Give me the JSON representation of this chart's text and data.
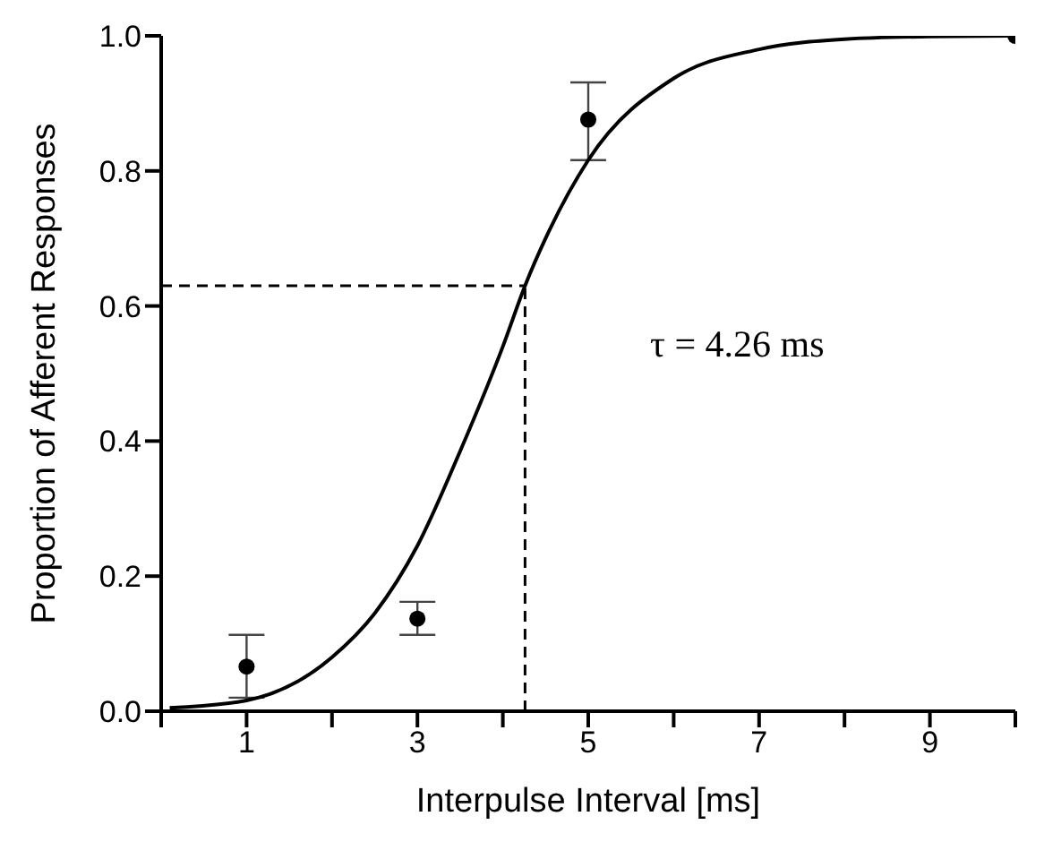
{
  "chart_data": {
    "type": "scatter",
    "xlabel": "Interpulse Interval [ms]",
    "ylabel": "Proportion of Afferent Responses",
    "annotations": [
      "τ = 4.26 ms"
    ],
    "series": [
      {
        "color": "#000000",
        "marker": "circle",
        "x": [
          1,
          3,
          5,
          10
        ],
        "values": [
          0.066,
          0.137,
          0.876,
          1.0
        ],
        "errors": [
          [
            0.02,
            0.113
          ],
          [
            0.113,
            0.162
          ],
          [
            0.816,
            0.931
          ],
          null
        ]
      },
      {
        "type": "line",
        "color": "#000000",
        "marker": "none",
        "line_style": "solid",
        "x": [
          0.1,
          1,
          2,
          2.5,
          3,
          3.5,
          4,
          4.26,
          4.5,
          5,
          6,
          7,
          8,
          9,
          10
        ],
        "values": [
          0.005,
          0.016,
          0.08,
          0.145,
          0.245,
          0.385,
          0.54,
          0.63,
          0.7,
          0.816,
          0.937,
          0.98,
          0.995,
          0.999,
          1.0
        ]
      }
    ],
    "ref_lines": [
      {
        "axis": "y",
        "value": 0.63,
        "line_style": "dashed",
        "color": "#000000"
      },
      {
        "axis": "x",
        "value": 4.26,
        "line_style": "dashed",
        "color": "#000000"
      }
    ],
    "xlim": [
      0,
      10
    ],
    "xticks": [
      {
        "value": 0,
        "label": null
      },
      1,
      {
        "value": 2,
        "label": null
      },
      3,
      {
        "value": 4,
        "label": null
      },
      5,
      {
        "value": 6,
        "label": null
      },
      7,
      {
        "value": 8,
        "label": null
      },
      9,
      {
        "value": 10,
        "label": null
      }
    ],
    "ylim": [
      0,
      1
    ],
    "yticks": [
      {
        "value": 0,
        "label": "0.0"
      },
      {
        "value": 0.2,
        "label": "0.2"
      },
      {
        "value": 0.4,
        "label": "0.4"
      },
      {
        "value": 0.6,
        "label": "0.6"
      },
      {
        "value": 0.8,
        "label": "0.8"
      },
      {
        "value": 1,
        "label": "1.0"
      }
    ],
    "grid": false
  }
}
